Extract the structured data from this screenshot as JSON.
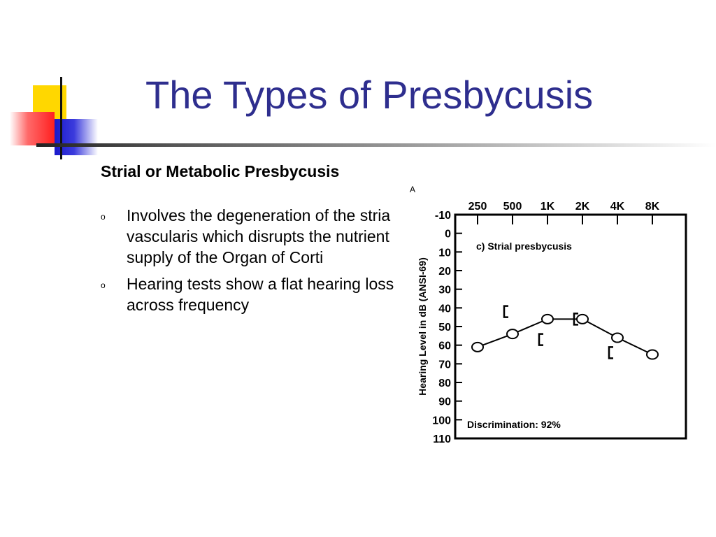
{
  "slide": {
    "title": "The Types of Presbycusis",
    "heading": "Strial or Metabolic Presbycusis",
    "bullets": [
      "Involves the degeneration of the stria vascularis which disrupts the nutrient supply of the Organ of Corti",
      "Hearing tests show a flat hearing loss across frequency"
    ],
    "bullet_marker": "o"
  },
  "colors": {
    "title": "#2e2e8e",
    "deco_yellow": "#ffd700",
    "deco_red": "#ff2020",
    "deco_blue": "#1a1acc"
  },
  "chart_data": {
    "type": "line",
    "panel_label": "A",
    "annotation": "c)  Strial   presbycusis",
    "discrimination": "Discrimination:  92%",
    "ylabel": "Hearing  Level  in  dB  (ANSI-69)",
    "xlabel": "",
    "x_ticks": [
      "250",
      "500",
      "1K",
      "2K",
      "4K",
      "8K"
    ],
    "y_ticks": [
      "-10",
      "0",
      "10",
      "20",
      "30",
      "40",
      "50",
      "60",
      "70",
      "80",
      "90",
      "100",
      "110"
    ],
    "ylim": [
      -10,
      110
    ],
    "y_inverted": true,
    "series": [
      {
        "marker": "circle",
        "connected": true,
        "values": [
          61,
          54,
          46,
          46,
          56,
          65
        ]
      },
      {
        "marker": "bracket",
        "connected": false,
        "points": [
          {
            "x": "500",
            "y": 42
          },
          {
            "x": "1K",
            "y": 57
          },
          {
            "x": "2K",
            "y": 46
          },
          {
            "x": "4K",
            "y": 64
          }
        ]
      }
    ]
  }
}
